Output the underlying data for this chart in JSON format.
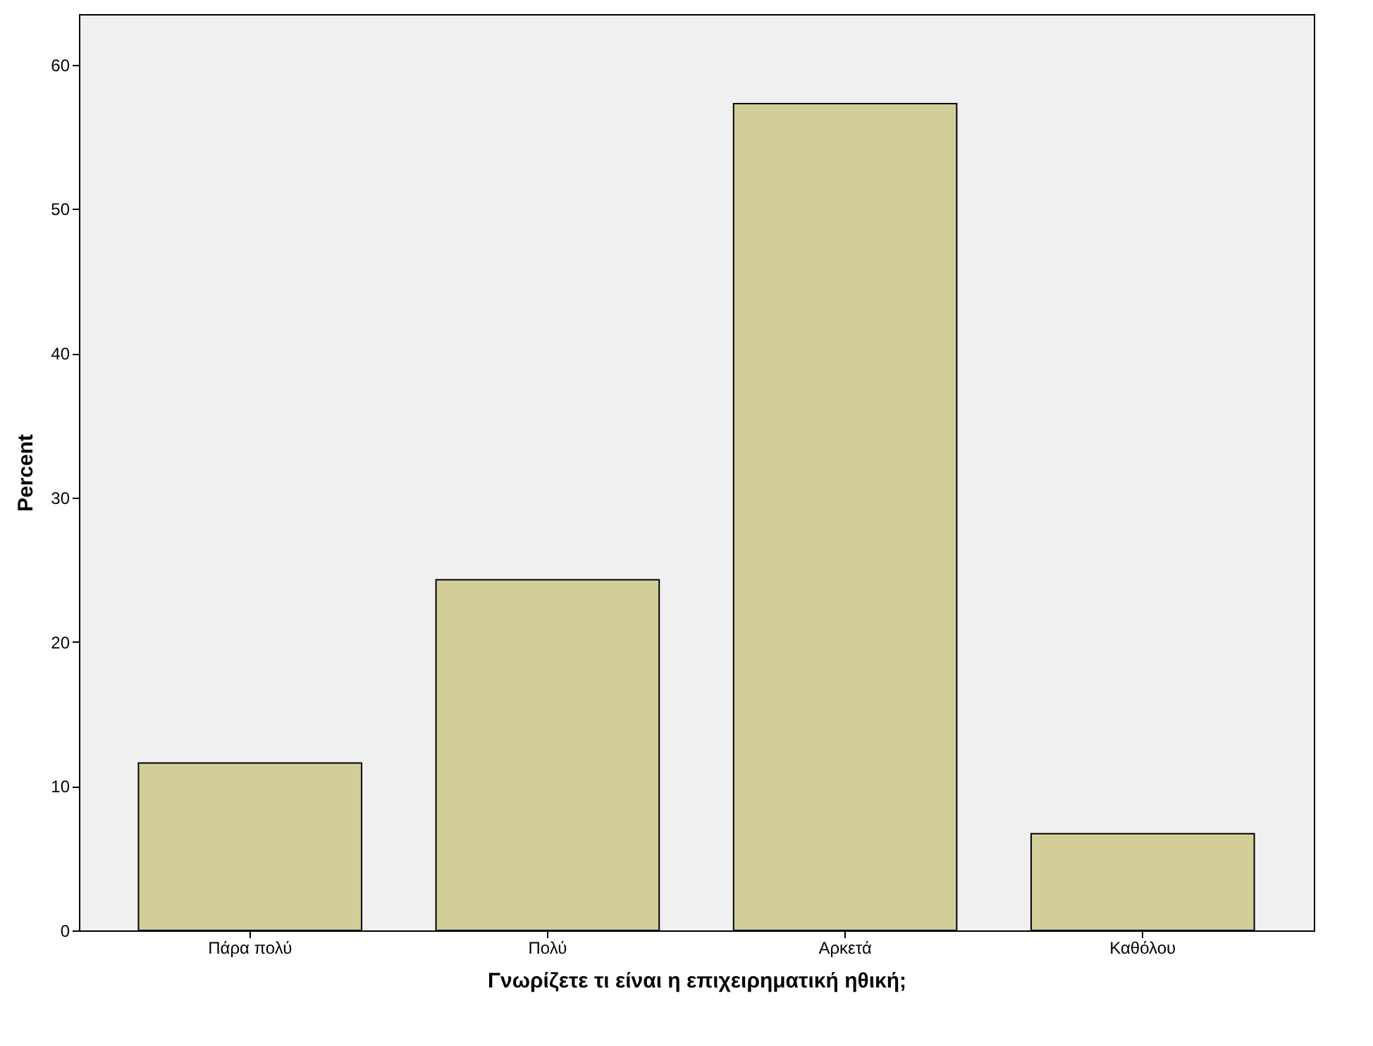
{
  "chart_data": {
    "type": "bar",
    "categories": [
      "Πάρα πολύ",
      "Πολύ",
      "Αρκετά",
      "Καθόλου"
    ],
    "values": [
      11.6,
      24.3,
      57.3,
      6.7
    ],
    "color": "#d3ce97",
    "xlabel": "Γνωρίζετε τι είναι η επιχειρηματική ηθική;",
    "ylabel": "Percent",
    "ylim": [
      0,
      63.5
    ],
    "yticks": [
      0,
      10,
      20,
      30,
      40,
      50,
      60
    ],
    "grid": false
  }
}
